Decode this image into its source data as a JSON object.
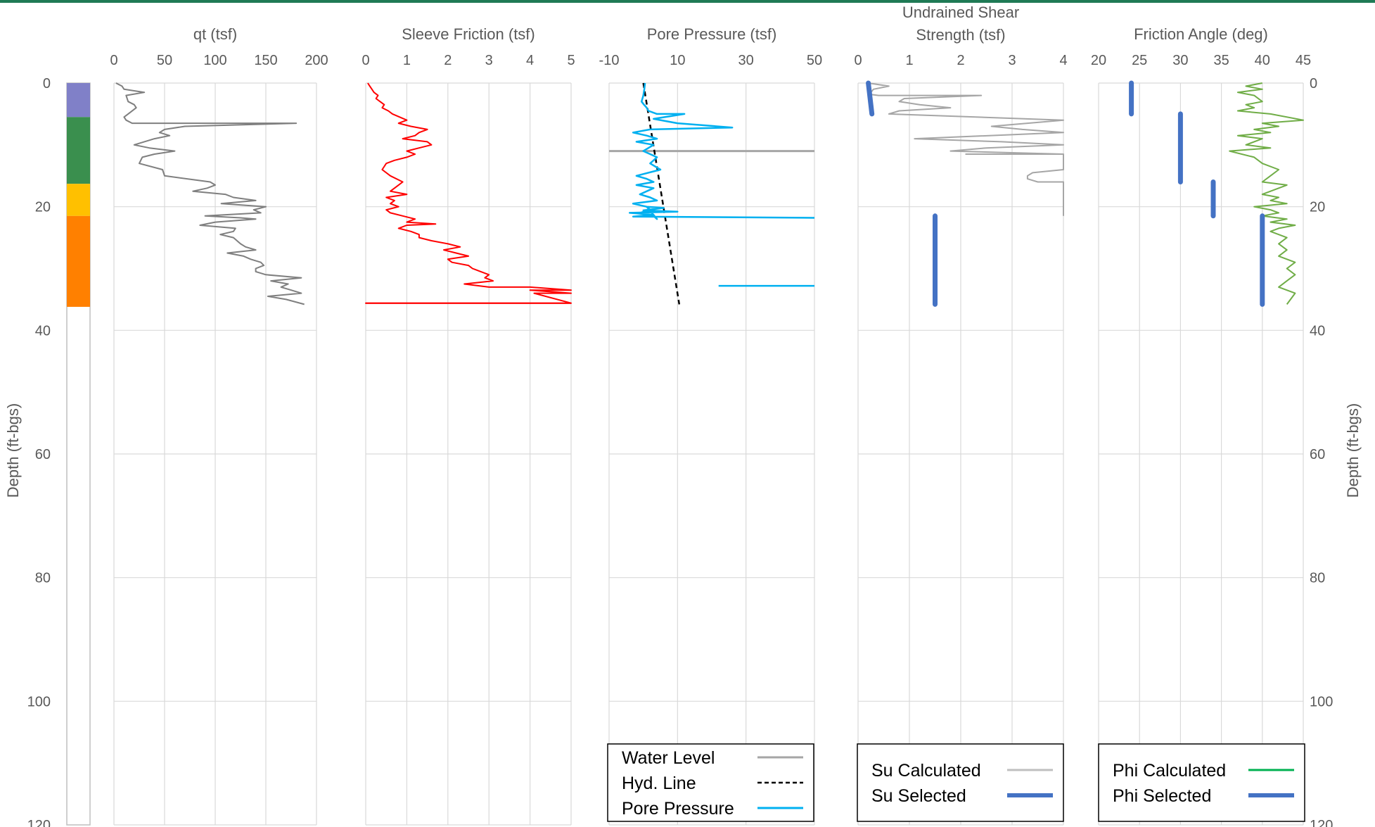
{
  "depth_axis": {
    "label": "Depth (ft-bgs)",
    "ticks": [
      "0",
      "20",
      "40",
      "60",
      "80",
      "100",
      "120"
    ],
    "range": [
      0,
      120
    ],
    "reversed": true
  },
  "chart_data": [
    {
      "type": "line",
      "title": "qt (tsf)",
      "xlim": [
        0,
        200
      ],
      "xticks": [
        "0",
        "50",
        "100",
        "150",
        "200"
      ],
      "series": [
        {
          "color": "#7f7f7f",
          "width": 2,
          "x": [
            2,
            8,
            10,
            30,
            12,
            14,
            20,
            22,
            14,
            10,
            12,
            18,
            180,
            70,
            50,
            45,
            55,
            40,
            30,
            20,
            35,
            60,
            40,
            28,
            25,
            48,
            50,
            95,
            100,
            92,
            78,
            110,
            118,
            140,
            106,
            150,
            138,
            145,
            90,
            125,
            140,
            100,
            85,
            120,
            118,
            105,
            118,
            125,
            130,
            140,
            112,
            128,
            135,
            145,
            148,
            140,
            140,
            150,
            185,
            155,
            172,
            165,
            175,
            185,
            152,
            170,
            188
          ],
          "y": [
            0,
            0.5,
            1,
            1.5,
            2,
            3,
            3.5,
            4,
            5,
            5.5,
            6,
            6.5,
            6.5,
            7,
            7.5,
            8,
            8.5,
            9,
            9.5,
            10,
            10.5,
            11,
            11.5,
            12,
            13,
            14,
            15,
            16,
            16.5,
            17,
            17.5,
            18,
            18.5,
            19,
            19.5,
            20,
            20.5,
            21,
            21.5,
            21.8,
            22,
            22.5,
            23,
            23.5,
            24,
            24.5,
            25,
            26,
            26.5,
            27,
            27.5,
            28,
            28.5,
            29,
            29.5,
            30,
            30.5,
            31,
            31.5,
            32,
            32.5,
            33,
            33.5,
            34,
            34.5,
            35,
            35.8
          ]
        }
      ]
    },
    {
      "type": "line",
      "title": "Sleeve Friction (tsf)",
      "xlim": [
        0,
        5
      ],
      "xticks": [
        "0",
        "1",
        "2",
        "3",
        "4",
        "5"
      ],
      "series": [
        {
          "color": "#ff0000",
          "width": 2,
          "x": [
            0.05,
            0.1,
            0.15,
            0.2,
            0.3,
            0.25,
            0.35,
            0.45,
            0.4,
            0.55,
            0.65,
            1.0,
            0.8,
            1.1,
            1.5,
            1.3,
            1.2,
            0.9,
            1.5,
            1.6,
            1.3,
            1.0,
            1.2,
            1.0,
            0.7,
            0.5,
            0.4,
            0.6,
            0.9,
            0.8,
            0.7,
            0.6,
            1.0,
            0.5,
            0.7,
            0.6,
            0.8,
            0.5,
            0.6,
            0.9,
            1.2,
            1.0,
            1.7,
            1.0,
            0.8,
            1.1,
            1.3,
            1.3,
            1.6,
            2.0,
            2.3,
            1.9,
            2.2,
            2.5,
            2.0,
            2.1,
            2.5,
            2.6,
            2.8,
            3.0,
            2.9,
            3.1,
            2.4,
            3.0,
            4.0,
            5.0,
            4.0,
            5.0,
            4.1,
            5.0,
            0.0,
            5.0
          ],
          "y": [
            0,
            0.5,
            1,
            1.5,
            2,
            2.5,
            3,
            3.5,
            4,
            4.5,
            5,
            6,
            6.5,
            7,
            7.5,
            8,
            8.5,
            9,
            9.5,
            10,
            10.5,
            11,
            11.5,
            12,
            12.5,
            13,
            14,
            15,
            16,
            16.5,
            17,
            17.5,
            18,
            18.5,
            19,
            19.5,
            20,
            20.5,
            21,
            21.5,
            22,
            22.5,
            22.8,
            23,
            23.5,
            24,
            24.5,
            25,
            25.5,
            26,
            26.5,
            27,
            27.5,
            28,
            28.5,
            29,
            29.5,
            30,
            30.5,
            31,
            31.5,
            32,
            32.5,
            33,
            33,
            33.5,
            33.5,
            34,
            34,
            35.6,
            35.6,
            35.6
          ]
        },
        {
          "color": "#ff0000",
          "width": 2,
          "x": [
            0,
            5
          ],
          "y": [
            35.6,
            35.6
          ]
        }
      ]
    },
    {
      "type": "line",
      "title": "Pore Pressure (tsf)",
      "xlim": [
        -10,
        50
      ],
      "xticks": [
        "-10",
        "10",
        "30",
        "50"
      ],
      "legend": {
        "position": "bottom",
        "entries": [
          {
            "label": "Water Level",
            "color": "#a6a6a6",
            "style": "solid"
          },
          {
            "label": "Hyd. Line",
            "color": "#000000",
            "style": "dashed"
          },
          {
            "label": "Pore Pressure",
            "color": "#00b0f0",
            "style": "solid"
          }
        ]
      },
      "series": [
        {
          "name": "Water Level",
          "color": "#a6a6a6",
          "width": 3,
          "x": [
            -10,
            50
          ],
          "y": [
            11,
            11
          ]
        },
        {
          "name": "Hyd. Line",
          "color": "#000000",
          "width": 2.5,
          "dash": "7,5",
          "x": [
            0,
            10.5
          ],
          "y": [
            0,
            35.8
          ]
        },
        {
          "name": "Pore Pressure",
          "color": "#00b0f0",
          "width": 2.5,
          "x": [
            0.5,
            0.3,
            0.0,
            -0.5,
            0.2,
            1.0,
            1.5,
            4.0,
            12.0,
            3.0,
            10.0,
            26.0,
            2.0,
            -3.0,
            1.0,
            4.0,
            -2.0,
            3.0,
            0.0,
            4.0,
            2.0,
            5.0,
            -2.0,
            1.0,
            3.0,
            -2.0,
            3.0,
            -1.0,
            2.0,
            4.0,
            -3.0,
            1.0,
            2.0,
            -1.0,
            3.0,
            4.0,
            1.0,
            6.0,
            0.0,
            10.0,
            -4.0,
            3.0,
            -3.0,
            50.0
          ],
          "y": [
            0,
            1,
            2,
            3,
            3.5,
            4,
            4.5,
            5,
            5,
            5.8,
            6.5,
            7.2,
            7.5,
            8,
            8.5,
            9,
            9.5,
            10,
            11,
            12,
            13,
            14,
            15,
            15.5,
            16,
            16.5,
            17,
            18,
            18.5,
            19,
            19.5,
            20,
            20.5,
            21,
            21.5,
            22,
            20.0,
            20.2,
            20.6,
            20.8,
            21,
            21.3,
            21.6,
            21.8
          ]
        },
        {
          "name": "Pore Pressure",
          "color": "#00b0f0",
          "width": 2.5,
          "x": [
            22,
            50
          ],
          "y": [
            32.8,
            32.8
          ]
        }
      ]
    },
    {
      "type": "line",
      "title": "Undrained Shear Strength (tsf)",
      "title_lines": [
        "Undrained Shear",
        "Strength (tsf)"
      ],
      "xlim": [
        0,
        4
      ],
      "xticks": [
        "0",
        "1",
        "2",
        "3",
        "4"
      ],
      "legend": {
        "position": "bottom",
        "entries": [
          {
            "label": "Su Calculated",
            "color": "#bfbfbf",
            "style": "solid"
          },
          {
            "label": "Su Selected",
            "color": "#4472c4",
            "style": "thick"
          }
        ]
      },
      "series": [
        {
          "name": "Su Calculated",
          "color": "#a6a6a6",
          "width": 2,
          "x": [
            0.2,
            0.6,
            0.3,
            0.25,
            0.2,
            0.4,
            2.4,
            0.9,
            0.8,
            1.2,
            1.8,
            0.8,
            0.6,
            4.0,
            2.6,
            3.2,
            4.0,
            1.1,
            2.8,
            4.0,
            2.5,
            1.8,
            4.0,
            3.7,
            2.1,
            4.0,
            4.0,
            3.4,
            3.3,
            3.3,
            3.5,
            4.0,
            4.0,
            4.0
          ],
          "y": [
            0,
            0.5,
            1,
            1.5,
            1.8,
            2,
            2,
            2.5,
            3,
            3.5,
            4,
            4.5,
            5,
            6,
            7,
            7.5,
            8,
            9,
            9.5,
            10,
            10.5,
            11,
            11.5,
            11.5,
            11.5,
            11.5,
            14,
            14.5,
            15,
            15.5,
            16,
            16,
            20,
            21.5
          ]
        },
        {
          "name": "Su Selected",
          "color": "#4472c4",
          "width": 7,
          "x": [
            0.2,
            0.27
          ],
          "y": [
            0,
            5
          ]
        },
        {
          "name": "Su Selected",
          "color": "#4472c4",
          "width": 7,
          "x": [
            1.5,
            1.5
          ],
          "y": [
            21.5,
            35.8
          ]
        }
      ]
    },
    {
      "type": "line",
      "title": "Friction Angle (deg)",
      "xlim": [
        20,
        45
      ],
      "xticks": [
        "20",
        "25",
        "30",
        "35",
        "40",
        "45"
      ],
      "legend": {
        "position": "bottom",
        "entries": [
          {
            "label": "Phi Calculated",
            "color": "#00b050",
            "style": "solid"
          },
          {
            "label": "Phi Selected",
            "color": "#4472c4",
            "style": "thick"
          }
        ]
      },
      "series": [
        {
          "name": "Phi Calculated",
          "color": "#70ad47",
          "width": 2,
          "x": [
            40,
            38,
            40,
            37,
            39,
            40,
            38,
            39,
            37,
            41,
            45,
            40,
            42,
            39,
            41,
            37,
            40,
            38,
            41,
            36,
            39,
            40,
            42,
            41,
            40,
            43,
            42,
            40,
            42,
            41,
            43,
            39,
            41,
            42,
            40,
            43,
            41,
            44,
            42,
            41,
            43,
            42,
            43,
            42,
            44,
            43,
            44,
            43,
            42,
            44,
            43
          ],
          "y": [
            0,
            0.5,
            1,
            1.5,
            2,
            3,
            3.5,
            4,
            4.5,
            5,
            6,
            6.5,
            7,
            7.5,
            8,
            8.5,
            9,
            10,
            10.5,
            11,
            12,
            13,
            14,
            15,
            16,
            16.5,
            17,
            18,
            18.5,
            19,
            19.5,
            20,
            20.5,
            21,
            21.5,
            22,
            22.5,
            23,
            23.5,
            24,
            25,
            26,
            27,
            28,
            29,
            30,
            31,
            32,
            33,
            34,
            35.8
          ]
        },
        {
          "name": "Phi Selected",
          "color": "#4472c4",
          "width": 7,
          "x": [
            24,
            24
          ],
          "y": [
            0,
            5
          ]
        },
        {
          "name": "Phi Selected",
          "color": "#4472c4",
          "width": 7,
          "x": [
            30,
            30
          ],
          "y": [
            5,
            16
          ]
        },
        {
          "name": "Phi Selected",
          "color": "#4472c4",
          "width": 7,
          "x": [
            34,
            34
          ],
          "y": [
            16,
            21.5
          ]
        },
        {
          "name": "Phi Selected",
          "color": "#4472c4",
          "width": 7,
          "x": [
            40,
            40
          ],
          "y": [
            21.5,
            35.8
          ]
        }
      ]
    }
  ],
  "strat_column": [
    {
      "top": 0,
      "bottom": 5.5,
      "color": "#8080c8"
    },
    {
      "top": 5.5,
      "bottom": 16.3,
      "color": "#3a8f4e"
    },
    {
      "top": 16.3,
      "bottom": 21.5,
      "color": "#ffc000"
    },
    {
      "top": 21.5,
      "bottom": 36.2,
      "color": "#ff8000"
    }
  ]
}
